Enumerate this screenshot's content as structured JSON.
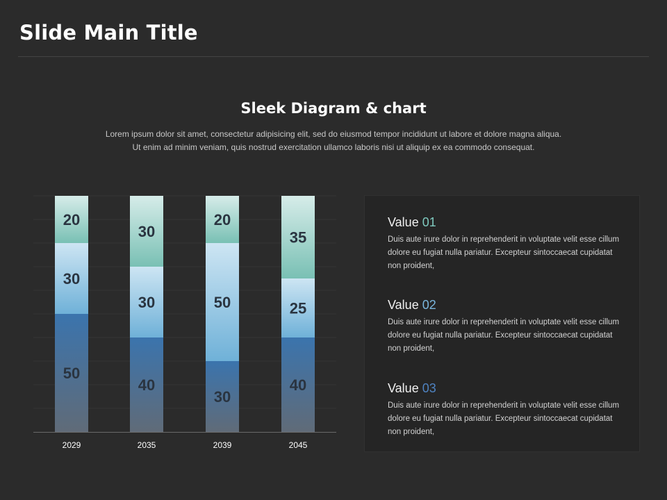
{
  "slide": {
    "title": "Slide Main Title",
    "subtitle": "Sleek Diagram & chart",
    "intro_line1": "Lorem ipsum dolor sit amet, consectetur adipisicing elit, sed do eiusmod tempor incididunt ut labore et dolore magna aliqua.",
    "intro_line2": "Ut enim ad minim veniam, quis nostrud exercitation ullamco laboris nisi ut aliquip ex ea commodo consequat."
  },
  "colors": {
    "background": "#2b2b2b",
    "segment_bottom": [
      "#3b74ad",
      "#606b78"
    ],
    "segment_middle": [
      "#cde5f3",
      "#6fb1d8"
    ],
    "segment_top": [
      "#d6ece9",
      "#79c0b4"
    ],
    "value_01": "#7fcabf",
    "value_02": "#7ab6dd",
    "value_03": "#4f83c2"
  },
  "chart_data": {
    "type": "bar",
    "stacked": true,
    "categories": [
      "2029",
      "2035",
      "2039",
      "2045"
    ],
    "series": [
      {
        "values": [
          50,
          40,
          30,
          40
        ]
      },
      {
        "values": [
          30,
          30,
          50,
          25
        ]
      },
      {
        "values": [
          20,
          30,
          20,
          35
        ]
      }
    ],
    "ylim": [
      0,
      100
    ],
    "grid": true,
    "legend": "none"
  },
  "values_panel": {
    "items": [
      {
        "label": "Value",
        "number": "01",
        "color": "#7fcabf",
        "body": "Duis aute irure dolor in reprehenderit in voluptate velit esse cillum dolore eu fugiat nulla pariatur. Excepteur sintoccaecat cupidatat non proident,"
      },
      {
        "label": "Value",
        "number": "02",
        "color": "#7ab6dd",
        "body": "Duis aute irure dolor in reprehenderit in voluptate velit esse cillum dolore eu fugiat nulla pariatur. Excepteur sintoccaecat cupidatat non proident,"
      },
      {
        "label": "Value",
        "number": "03",
        "color": "#4f83c2",
        "body": "Duis aute irure dolor in reprehenderit in voluptate velit esse cillum dolore eu fugiat nulla pariatur. Excepteur sintoccaecat cupidatat non proident,"
      }
    ]
  }
}
